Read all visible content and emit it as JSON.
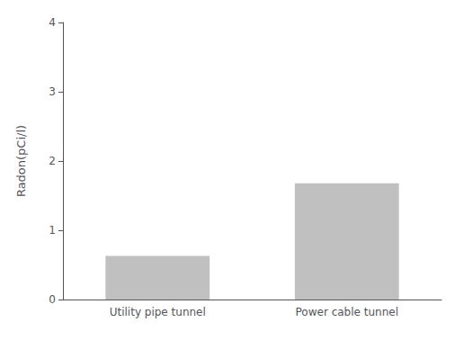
{
  "chart_data": {
    "type": "bar",
    "categories": [
      "Utility pipe tunnel",
      "Power cable tunnel"
    ],
    "values": [
      0.63,
      1.68
    ],
    "color": "#C0C0C0",
    "ylabel": "Radon(pCi/l)",
    "ylim": [
      0,
      4
    ],
    "yticks": [
      0,
      1,
      2,
      3,
      4
    ],
    "grid": false
  }
}
